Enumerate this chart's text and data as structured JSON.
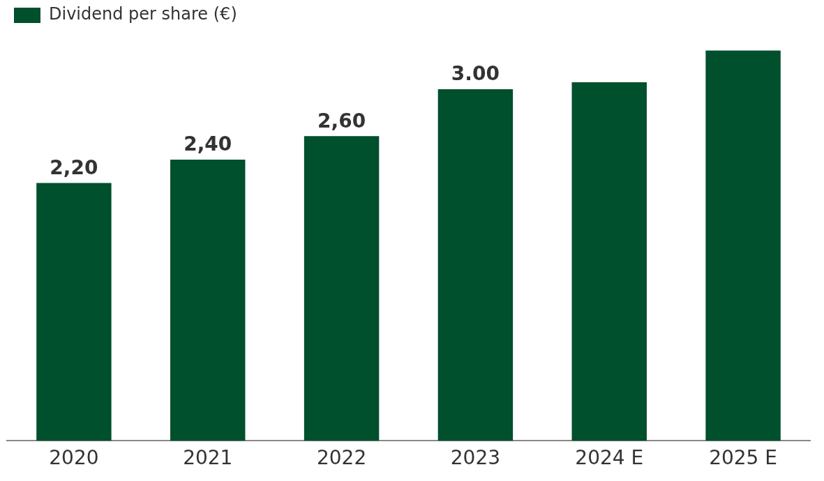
{
  "chart_data": {
    "type": "bar",
    "categories": [
      "2020",
      "2021",
      "2022",
      "2023",
      "2024 E",
      "2025 E"
    ],
    "series": [
      {
        "name": "Dividend per share (€)",
        "color": "#004f2d",
        "values": [
          2.2,
          2.4,
          2.6,
          3.0,
          3.06,
          3.33
        ],
        "value_labels": [
          "2,20",
          "2,40",
          "2,60",
          "3.00",
          null,
          null
        ]
      }
    ],
    "tick_labels": "x",
    "grid": false,
    "legend": "top left"
  }
}
